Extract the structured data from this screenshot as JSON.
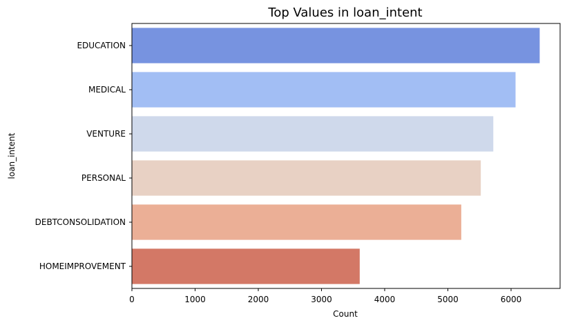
{
  "chart_data": {
    "type": "bar",
    "orientation": "horizontal",
    "title": "Top Values in loan_intent",
    "xlabel": "Count",
    "ylabel": "loan_intent",
    "categories": [
      "EDUCATION",
      "MEDICAL",
      "VENTURE",
      "PERSONAL",
      "DEBTCONSOLIDATION",
      "HOMEIMPROVEMENT"
    ],
    "values": [
      6453,
      6071,
      5719,
      5521,
      5212,
      3605
    ],
    "colors": [
      "#7793e0",
      "#a2bef4",
      "#cfd9eb",
      "#e8d1c4",
      "#ebaf96",
      "#d37866"
    ],
    "xlim": [
      0,
      6776
    ],
    "xticks": [
      0,
      1000,
      2000,
      3000,
      4000,
      5000,
      6000
    ],
    "grid": false,
    "legend": "none"
  }
}
